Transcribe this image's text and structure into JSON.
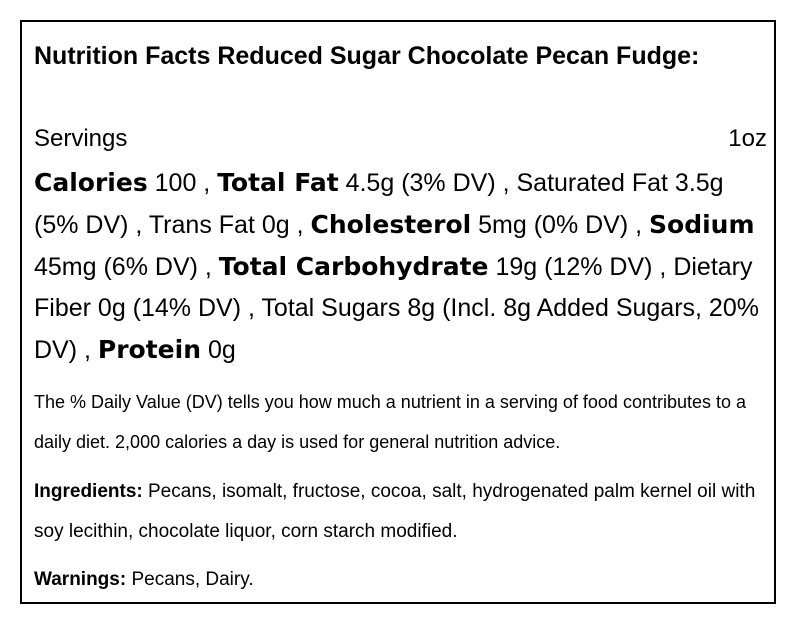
{
  "title": "Nutrition Facts Reduced Sugar Chocolate Pecan Fudge:",
  "servings": {
    "label": "Servings",
    "value": "1oz"
  },
  "nutrients": [
    {
      "name": "Calories",
      "value": " 100 , ",
      "bold": true
    },
    {
      "name": "Total Fat",
      "value": " 4.5g (3% DV) , ",
      "bold": true
    },
    {
      "name": "Saturated Fat",
      "value": " 3.5g (5% DV) , ",
      "bold": false
    },
    {
      "name": "Trans Fat",
      "value": " 0g , ",
      "bold": false
    },
    {
      "name": "Cholesterol",
      "value": " 5mg (0% DV) , ",
      "bold": true
    },
    {
      "name": "Sodium",
      "value": " 45mg (6% DV) , ",
      "bold": true
    },
    {
      "name": "Total Carbohydrate",
      "value": " 19g (12% DV) , ",
      "bold": true
    },
    {
      "name": "Dietary Fiber",
      "value": " 0g (14% DV) , ",
      "bold": false
    },
    {
      "name": "Total Sugars",
      "value": " 8g (Incl. 8g Added Sugars, 20% DV) , ",
      "bold": false
    },
    {
      "name": "Protein",
      "value": " 0g",
      "bold": true
    }
  ],
  "dv_note": "The % Daily Value (DV) tells you how much a nutrient in a serving of food contributes to a daily diet. 2,000 calories a day is used for general nutrition advice.",
  "ingredients": {
    "label": "Ingredients:",
    "text": " Pecans, isomalt, fructose, cocoa, salt, hydrogenated palm kernel oil with soy lecithin, chocolate liquor, corn starch modified."
  },
  "warnings": {
    "label": "Warnings:",
    "text": " Pecans, Dairy."
  }
}
